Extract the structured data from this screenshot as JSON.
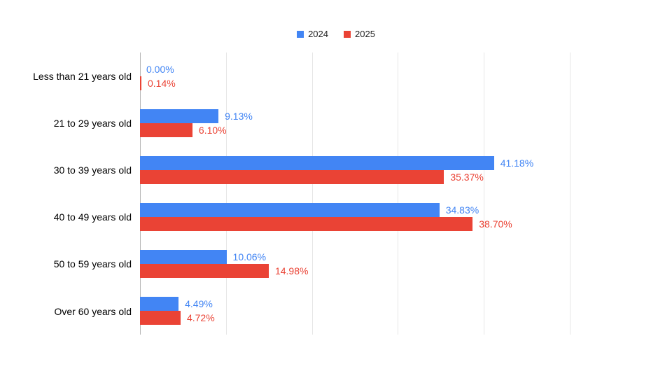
{
  "chart_data": {
    "type": "bar",
    "orientation": "horizontal",
    "title": "",
    "categories": [
      "Less than 21 years old",
      "21 to 29 years old",
      "30 to 39 years old",
      "40 to 49 years old",
      "50 to 59 years old",
      "Over 60 years old"
    ],
    "series": [
      {
        "name": "2024",
        "color": "#4285F4",
        "values": [
          0.0,
          9.13,
          41.18,
          34.83,
          10.06,
          4.49
        ],
        "labels": [
          "0.00%",
          "9.13%",
          "41.18%",
          "34.83%",
          "10.06%",
          "4.49%"
        ]
      },
      {
        "name": "2025",
        "color": "#EA4335",
        "values": [
          0.14,
          6.1,
          35.37,
          38.7,
          14.98,
          4.72
        ],
        "labels": [
          "0.14%",
          "6.10%",
          "35.37%",
          "38.70%",
          "14.98%",
          "4.72%"
        ]
      }
    ],
    "xlim": [
      0,
      50
    ],
    "gridline_step": 10,
    "grid": true,
    "legend_position": "top",
    "axis_color": "#b7b7b7",
    "gridline_color": "#e6e6e6",
    "value_label_format": "percent"
  }
}
